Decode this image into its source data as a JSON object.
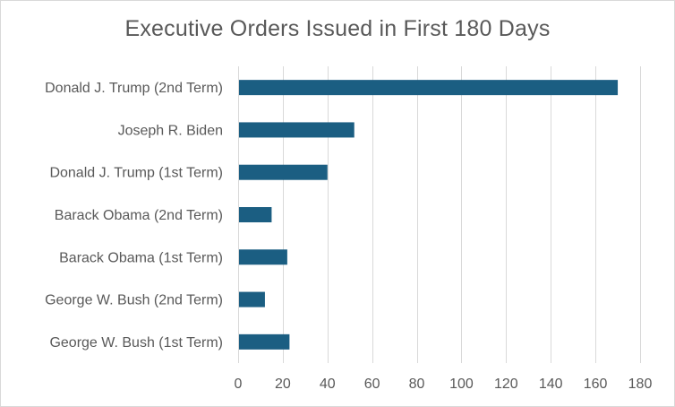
{
  "chart_data": {
    "type": "bar",
    "orientation": "horizontal",
    "title": "Executive Orders Issued in First 180 Days",
    "categories": [
      "Donald J. Trump (2nd Term)",
      "Joseph R. Biden",
      "Donald J. Trump (1st Term)",
      "Barack Obama (2nd Term)",
      "Barack Obama (1st Term)",
      "George W. Bush (2nd Term)",
      "George W. Bush (1st Term)"
    ],
    "values": [
      170,
      52,
      40,
      15,
      22,
      12,
      23
    ],
    "xlim": [
      0,
      180
    ],
    "xticks": [
      0,
      20,
      40,
      60,
      80,
      100,
      120,
      140,
      160,
      180
    ],
    "grid": "vertical",
    "legend": "none",
    "colors": {
      "bar": "#1b5e82",
      "grid": "#d9d9d9",
      "text": "#595959"
    }
  }
}
